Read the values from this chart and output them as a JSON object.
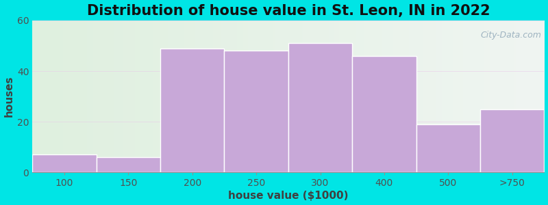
{
  "title": "Distribution of house value in St. Leon, IN in 2022",
  "xlabel": "house value ($1000)",
  "ylabel": "houses",
  "categories": [
    "100",
    "150",
    "200",
    "250",
    "300",
    "400",
    "500",
    ">750"
  ],
  "values": [
    7,
    6,
    49,
    48,
    51,
    46,
    19,
    25
  ],
  "bar_color": "#c8a8d8",
  "bar_edge_color": "#ffffff",
  "ylim": [
    0,
    60
  ],
  "yticks": [
    0,
    20,
    40,
    60
  ],
  "background_outer": "#00e5e5",
  "bg_left_color": "#dff0df",
  "bg_right_color": "#eaf2ee",
  "title_fontsize": 15,
  "axis_label_fontsize": 11,
  "tick_fontsize": 10,
  "watermark_text": "City-Data.com",
  "grid_color": "#e8c8e8"
}
